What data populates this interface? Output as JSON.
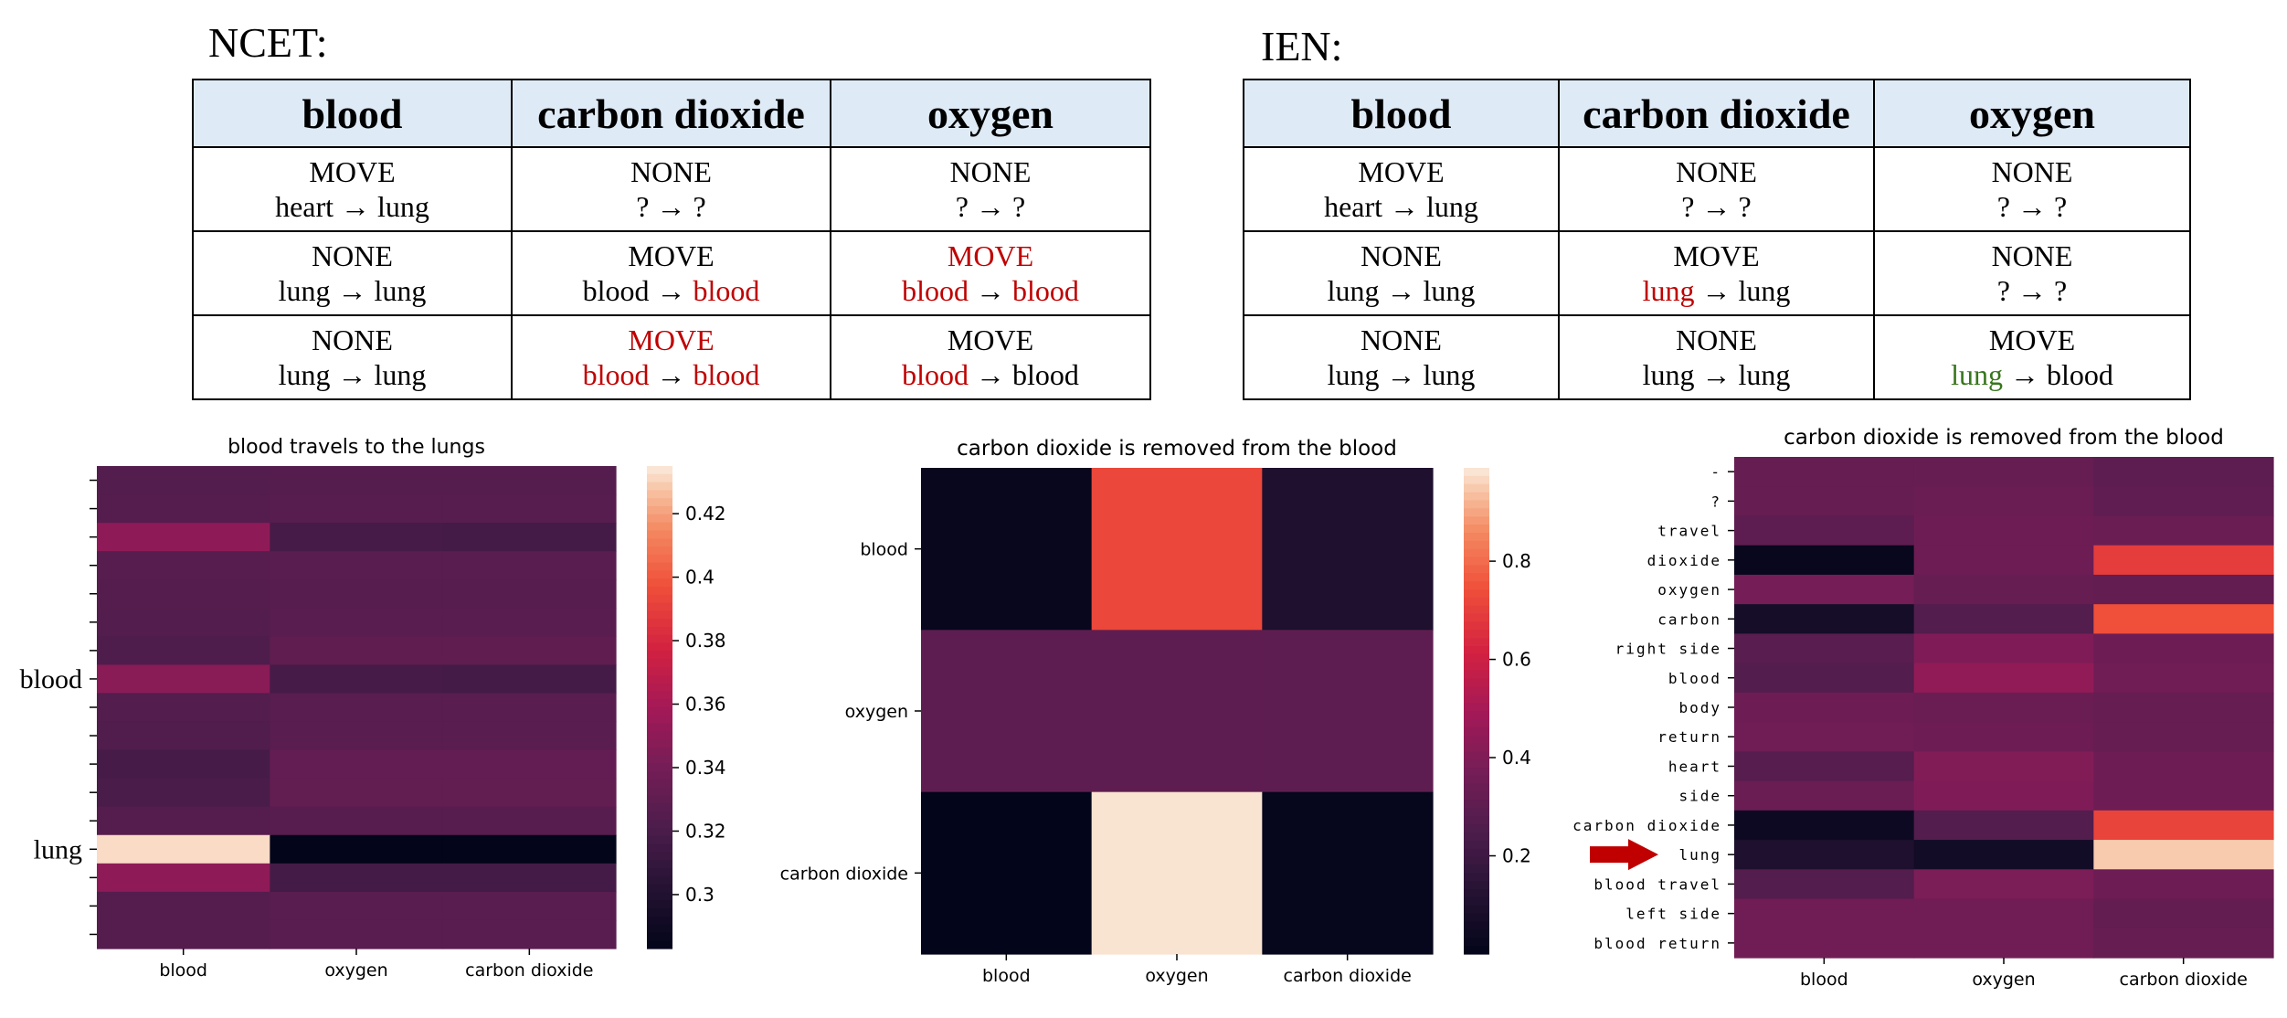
{
  "tables": [
    {
      "title": "NCET:",
      "headers": [
        "blood",
        "carbon dioxide",
        "oxygen"
      ],
      "rows": [
        [
          {
            "action": "MOVE",
            "from": "heart",
            "to": "lung"
          },
          {
            "action": "NONE",
            "from": "?",
            "to": "?"
          },
          {
            "action": "NONE",
            "from": "?",
            "to": "?"
          }
        ],
        [
          {
            "action": "NONE",
            "from": "lung",
            "to": "lung"
          },
          {
            "action": "MOVE",
            "from": "blood",
            "to": "blood",
            "to_hl": "red"
          },
          {
            "action": "MOVE",
            "from": "blood",
            "to": "blood",
            "action_hl": "red",
            "from_hl": "red",
            "to_hl": "red"
          }
        ],
        [
          {
            "action": "NONE",
            "from": "lung",
            "to": "lung"
          },
          {
            "action": "MOVE",
            "from": "blood",
            "to": "blood",
            "action_hl": "red",
            "from_hl": "red",
            "to_hl": "red"
          },
          {
            "action": "MOVE",
            "from": "blood",
            "to": "blood",
            "from_hl": "red"
          }
        ]
      ]
    },
    {
      "title": "IEN:",
      "headers": [
        "blood",
        "carbon dioxide",
        "oxygen"
      ],
      "rows": [
        [
          {
            "action": "MOVE",
            "from": "heart",
            "to": "lung"
          },
          {
            "action": "NONE",
            "from": "?",
            "to": "?"
          },
          {
            "action": "NONE",
            "from": "?",
            "to": "?"
          }
        ],
        [
          {
            "action": "NONE",
            "from": "lung",
            "to": "lung"
          },
          {
            "action": "MOVE",
            "from": "lung",
            "to": "lung",
            "from_hl": "red"
          },
          {
            "action": "NONE",
            "from": "?",
            "to": "?"
          }
        ],
        [
          {
            "action": "NONE",
            "from": "lung",
            "to": "lung"
          },
          {
            "action": "NONE",
            "from": "lung",
            "to": "lung"
          },
          {
            "action": "MOVE",
            "from": "lung",
            "to": "blood",
            "from_hl": "green"
          }
        ]
      ]
    }
  ],
  "arrow_symbol": "→",
  "colors": {
    "red": "#c00000",
    "green": "#38761d",
    "header_bg": "#deeaf6"
  },
  "chart_data": [
    {
      "type": "heatmap",
      "title": "blood travels to the lungs",
      "xlabels": [
        "blood",
        "oxygen",
        "carbon dioxide"
      ],
      "row_count": 17,
      "ylabels_shown": [
        {
          "row": 7,
          "label": "blood"
        },
        {
          "row": 13,
          "label": "lung"
        }
      ],
      "values": [
        [
          0.324,
          0.325,
          0.325
        ],
        [
          0.325,
          0.326,
          0.326
        ],
        [
          0.35,
          0.318,
          0.317
        ],
        [
          0.326,
          0.327,
          0.327
        ],
        [
          0.325,
          0.326,
          0.326
        ],
        [
          0.324,
          0.327,
          0.327
        ],
        [
          0.322,
          0.33,
          0.33
        ],
        [
          0.348,
          0.318,
          0.317
        ],
        [
          0.324,
          0.327,
          0.327
        ],
        [
          0.323,
          0.327,
          0.327
        ],
        [
          0.318,
          0.332,
          0.332
        ],
        [
          0.32,
          0.331,
          0.331
        ],
        [
          0.325,
          0.326,
          0.326
        ],
        [
          0.432,
          0.283,
          0.283
        ],
        [
          0.35,
          0.317,
          0.317
        ],
        [
          0.325,
          0.327,
          0.327
        ],
        [
          0.325,
          0.327,
          0.327
        ]
      ],
      "colorbar": {
        "min": 0.283,
        "max": 0.435,
        "ticks": [
          0.3,
          0.32,
          0.34,
          0.36,
          0.38,
          0.4,
          0.42
        ]
      }
    },
    {
      "type": "heatmap",
      "title": "carbon dioxide is removed from the blood",
      "xlabels": [
        "blood",
        "oxygen",
        "carbon dioxide"
      ],
      "ylabels": [
        "blood",
        "oxygen",
        "carbon dioxide"
      ],
      "values": [
        [
          0.02,
          0.72,
          0.1
        ],
        [
          0.3,
          0.3,
          0.3
        ],
        [
          0.0,
          0.98,
          0.01
        ]
      ],
      "colorbar": {
        "min": 0.0,
        "max": 0.99,
        "ticks": [
          0.2,
          0.4,
          0.6,
          0.8
        ]
      }
    },
    {
      "type": "heatmap",
      "title": "carbon dioxide is removed from the blood",
      "xlabels": [
        "blood",
        "oxygen",
        "carbon dioxide"
      ],
      "ylabels": [
        "-",
        "?",
        "travel",
        "dioxide",
        "oxygen",
        "carbon",
        "right side",
        "blood",
        "body",
        "return",
        "heart",
        "side",
        "carbon dioxide",
        "lung",
        "blood travel",
        "left side",
        "blood return"
      ],
      "highlight_row": "lung",
      "values": [
        [
          0.33,
          0.33,
          0.3
        ],
        [
          0.33,
          0.34,
          0.31
        ],
        [
          0.3,
          0.35,
          0.34
        ],
        [
          0.02,
          0.35,
          0.7
        ],
        [
          0.37,
          0.33,
          0.32
        ],
        [
          0.07,
          0.27,
          0.75
        ],
        [
          0.29,
          0.4,
          0.35
        ],
        [
          0.27,
          0.45,
          0.36
        ],
        [
          0.35,
          0.34,
          0.33
        ],
        [
          0.36,
          0.35,
          0.33
        ],
        [
          0.28,
          0.41,
          0.35
        ],
        [
          0.34,
          0.4,
          0.35
        ],
        [
          0.04,
          0.27,
          0.72
        ],
        [
          0.1,
          0.06,
          0.96
        ],
        [
          0.27,
          0.39,
          0.35
        ],
        [
          0.36,
          0.36,
          0.32
        ],
        [
          0.36,
          0.36,
          0.33
        ]
      ],
      "value_range": [
        0.0,
        1.0
      ]
    }
  ]
}
